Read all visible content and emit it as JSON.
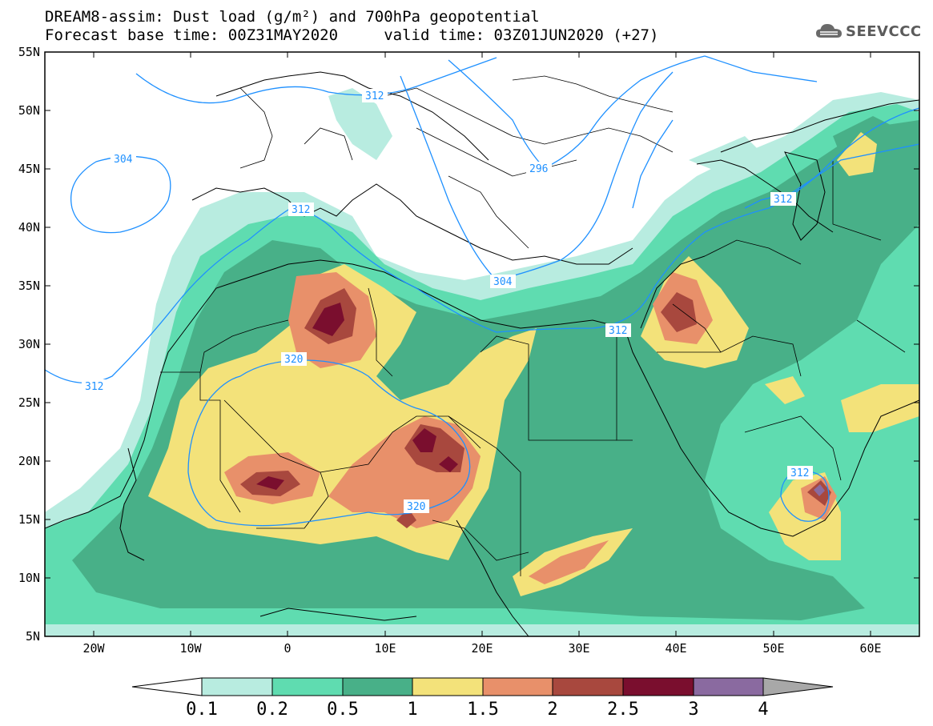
{
  "header": {
    "title_line1": "DREAM8-assim: Dust load (g/m²) and 700hPa geopotential",
    "title_line2": "Forecast base time: 00Z31MAY2020     valid time: 03Z01JUN2020 (+27)"
  },
  "logo": {
    "text": "SEEVCCC",
    "icon": "cloud-icon"
  },
  "map": {
    "lat_ticks": [
      "55N",
      "50N",
      "45N",
      "40N",
      "35N",
      "30N",
      "25N",
      "20N",
      "15N",
      "10N",
      "5N"
    ],
    "lon_ticks": [
      "20W",
      "10W",
      "0",
      "10E",
      "20E",
      "30E",
      "40E",
      "50E",
      "60E"
    ],
    "contour_labels": [
      "312",
      "304",
      "312",
      "296",
      "312",
      "304",
      "312",
      "320",
      "312",
      "320",
      "312"
    ]
  },
  "colorbar": {
    "labels": [
      "0.1",
      "0.2",
      "0.5",
      "1",
      "1.5",
      "2",
      "2.5",
      "3",
      "4"
    ],
    "colors": [
      "#b8ece0",
      "#5fdcb0",
      "#48b088",
      "#f3e27a",
      "#e8906a",
      "#a8483e",
      "#7a0e2e",
      "#8a6aa0",
      "#a8a8a8"
    ]
  }
}
